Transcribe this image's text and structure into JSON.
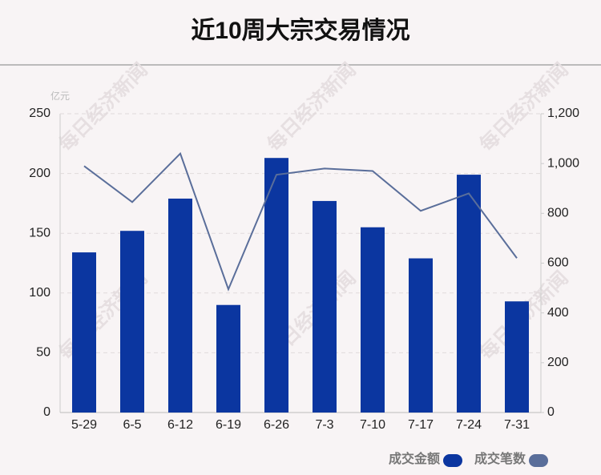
{
  "chart_data": {
    "type": "bar_line",
    "title": "近10周大宗交易情况",
    "y_unit": "亿元",
    "watermark": "每日经济新闻",
    "categories": [
      "5-29",
      "6-5",
      "6-12",
      "6-19",
      "6-26",
      "7-3",
      "7-10",
      "7-17",
      "7-24",
      "7-31"
    ],
    "series": [
      {
        "name": "成交金额",
        "type": "bar",
        "color": "#0b36a0",
        "values": [
          134,
          152,
          179,
          90,
          213,
          177,
          155,
          129,
          199,
          93
        ]
      },
      {
        "name": "成交笔数",
        "type": "line",
        "axis": "y2",
        "color": "#5a6e9a",
        "values": [
          990,
          845,
          1040,
          495,
          955,
          980,
          970,
          810,
          880,
          620
        ]
      }
    ],
    "ylim": [
      0,
      250
    ],
    "yticks": [
      0,
      50,
      100,
      150,
      200,
      250
    ],
    "y2lim": [
      0,
      1200
    ],
    "y2ticks": [
      0,
      200,
      400,
      600,
      800,
      {
        "value": 1000,
        "label": "1,000"
      },
      {
        "value": 1200,
        "label": "1,200"
      }
    ],
    "grid": true
  }
}
